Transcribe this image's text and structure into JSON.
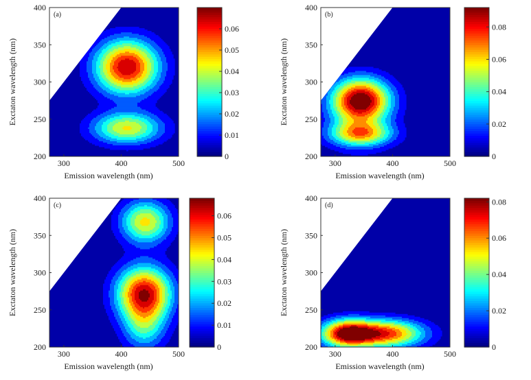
{
  "figure": {
    "panels": [
      {
        "id": "a",
        "label": "(a)",
        "xlabel": "Emission  wavelength (nm)",
        "ylabel": "Exctaton  wavelength (nm)",
        "xticks": [
          "300",
          "400",
          "500"
        ],
        "yticks": [
          "200",
          "250",
          "300",
          "350",
          "400"
        ],
        "cbar_ticks": [
          "0",
          "0.01",
          "0.02",
          "0.03",
          "0.04",
          "0.05",
          "0.06"
        ]
      },
      {
        "id": "b",
        "label": "(b)",
        "xlabel": "Emission  wavelength (nm)",
        "ylabel": "Exctaton  wavelength (nm)",
        "xticks": [
          "300",
          "400",
          "500"
        ],
        "yticks": [
          "200",
          "250",
          "300",
          "350",
          "400"
        ],
        "cbar_ticks": [
          "0",
          "0.02",
          "0.04",
          "0.06",
          "0.08"
        ]
      },
      {
        "id": "c",
        "label": "(c)",
        "xlabel": "Emission  wavelength (nm)",
        "ylabel": "Exctaton  wavelength (nm)",
        "xticks": [
          "300",
          "400",
          "500"
        ],
        "yticks": [
          "200",
          "250",
          "300",
          "350",
          "400"
        ],
        "cbar_ticks": [
          "0",
          "0.01",
          "0.02",
          "0.03",
          "0.04",
          "0.05",
          "0.06"
        ]
      },
      {
        "id": "d",
        "label": "(d)",
        "xlabel": "Emission  wavelength (nm)",
        "ylabel": "Exctaton  wavelength (nm)",
        "xticks": [
          "300",
          "400",
          "500"
        ],
        "yticks": [
          "200",
          "250",
          "300",
          "350",
          "400"
        ],
        "cbar_ticks": [
          "0",
          "0.02",
          "0.04",
          "0.06",
          "0.08"
        ]
      }
    ]
  },
  "chart_data": [
    {
      "type": "heatmap",
      "panel": "(a)",
      "xlabel": "Emission  wavelength (nm)",
      "ylabel": "Exctaton  wavelength (nm)",
      "xlim": [
        275,
        500
      ],
      "ylim": [
        200,
        400
      ],
      "xticks": [
        300,
        400,
        500
      ],
      "yticks": [
        200,
        250,
        300,
        350,
        400
      ],
      "colorbar": {
        "min": 0,
        "max": 0.07,
        "ticks": [
          0,
          0.01,
          0.02,
          0.03,
          0.04,
          0.05,
          0.06
        ],
        "colormap": "jet"
      },
      "masked_region": "emission < excitation (upper-left triangle blank)",
      "peaks": [
        {
          "ex": 320,
          "em": 410,
          "value": 0.07,
          "sx": 38,
          "sy": 25
        },
        {
          "ex": 238,
          "em": 410,
          "value": 0.045,
          "sx": 42,
          "sy": 15
        }
      ]
    },
    {
      "type": "heatmap",
      "panel": "(b)",
      "xlabel": "Emission  wavelength (nm)",
      "ylabel": "Exctaton  wavelength (nm)",
      "xlim": [
        275,
        500
      ],
      "ylim": [
        200,
        400
      ],
      "xticks": [
        300,
        400,
        500
      ],
      "yticks": [
        200,
        250,
        300,
        350,
        400
      ],
      "colorbar": {
        "min": 0,
        "max": 0.092,
        "ticks": [
          0,
          0.02,
          0.04,
          0.06,
          0.08
        ],
        "colormap": "jet"
      },
      "masked_region": "emission < excitation (upper-left triangle blank)",
      "peaks": [
        {
          "ex": 276,
          "em": 345,
          "value": 0.09,
          "sx": 35,
          "sy": 20
        },
        {
          "ex": 230,
          "em": 345,
          "value": 0.055,
          "sx": 38,
          "sy": 11
        },
        {
          "ex": 250,
          "em": 340,
          "value": 0.022,
          "sx": 38,
          "sy": 30
        }
      ]
    },
    {
      "type": "heatmap",
      "panel": "(c)",
      "xlabel": "Emission  wavelength (nm)",
      "ylabel": "Exctaton  wavelength (nm)",
      "xlim": [
        275,
        500
      ],
      "ylim": [
        200,
        400
      ],
      "xticks": [
        300,
        400,
        500
      ],
      "yticks": [
        200,
        250,
        300,
        350,
        400
      ],
      "colorbar": {
        "min": 0,
        "max": 0.068,
        "ticks": [
          0,
          0.01,
          0.02,
          0.03,
          0.04,
          0.05,
          0.06
        ],
        "colormap": "jet"
      },
      "masked_region": "emission < excitation (upper-left triangle blank)",
      "peaks": [
        {
          "ex": 272,
          "em": 440,
          "value": 0.068,
          "sx": 33,
          "sy": 25
        },
        {
          "ex": 368,
          "em": 442,
          "value": 0.045,
          "sx": 30,
          "sy": 20
        },
        {
          "ex": 225,
          "em": 440,
          "value": 0.025,
          "sx": 26,
          "sy": 22
        }
      ]
    },
    {
      "type": "heatmap",
      "panel": "(d)",
      "xlabel": "Emission  wavelength (nm)",
      "ylabel": "Exctaton  wavelength (nm)",
      "xlim": [
        275,
        500
      ],
      "ylim": [
        200,
        400
      ],
      "xticks": [
        300,
        400,
        500
      ],
      "yticks": [
        200,
        250,
        300,
        350,
        400
      ],
      "colorbar": {
        "min": 0,
        "max": 0.082,
        "ticks": [
          0,
          0.02,
          0.04,
          0.06,
          0.08
        ],
        "colormap": "jet"
      },
      "masked_region": "emission < excitation (upper-left triangle blank)",
      "peaks": [
        {
          "ex": 218,
          "em": 320,
          "value": 0.08,
          "sx": 32,
          "sy": 13
        },
        {
          "ex": 218,
          "em": 390,
          "value": 0.07,
          "sx": 45,
          "sy": 13
        }
      ]
    }
  ]
}
